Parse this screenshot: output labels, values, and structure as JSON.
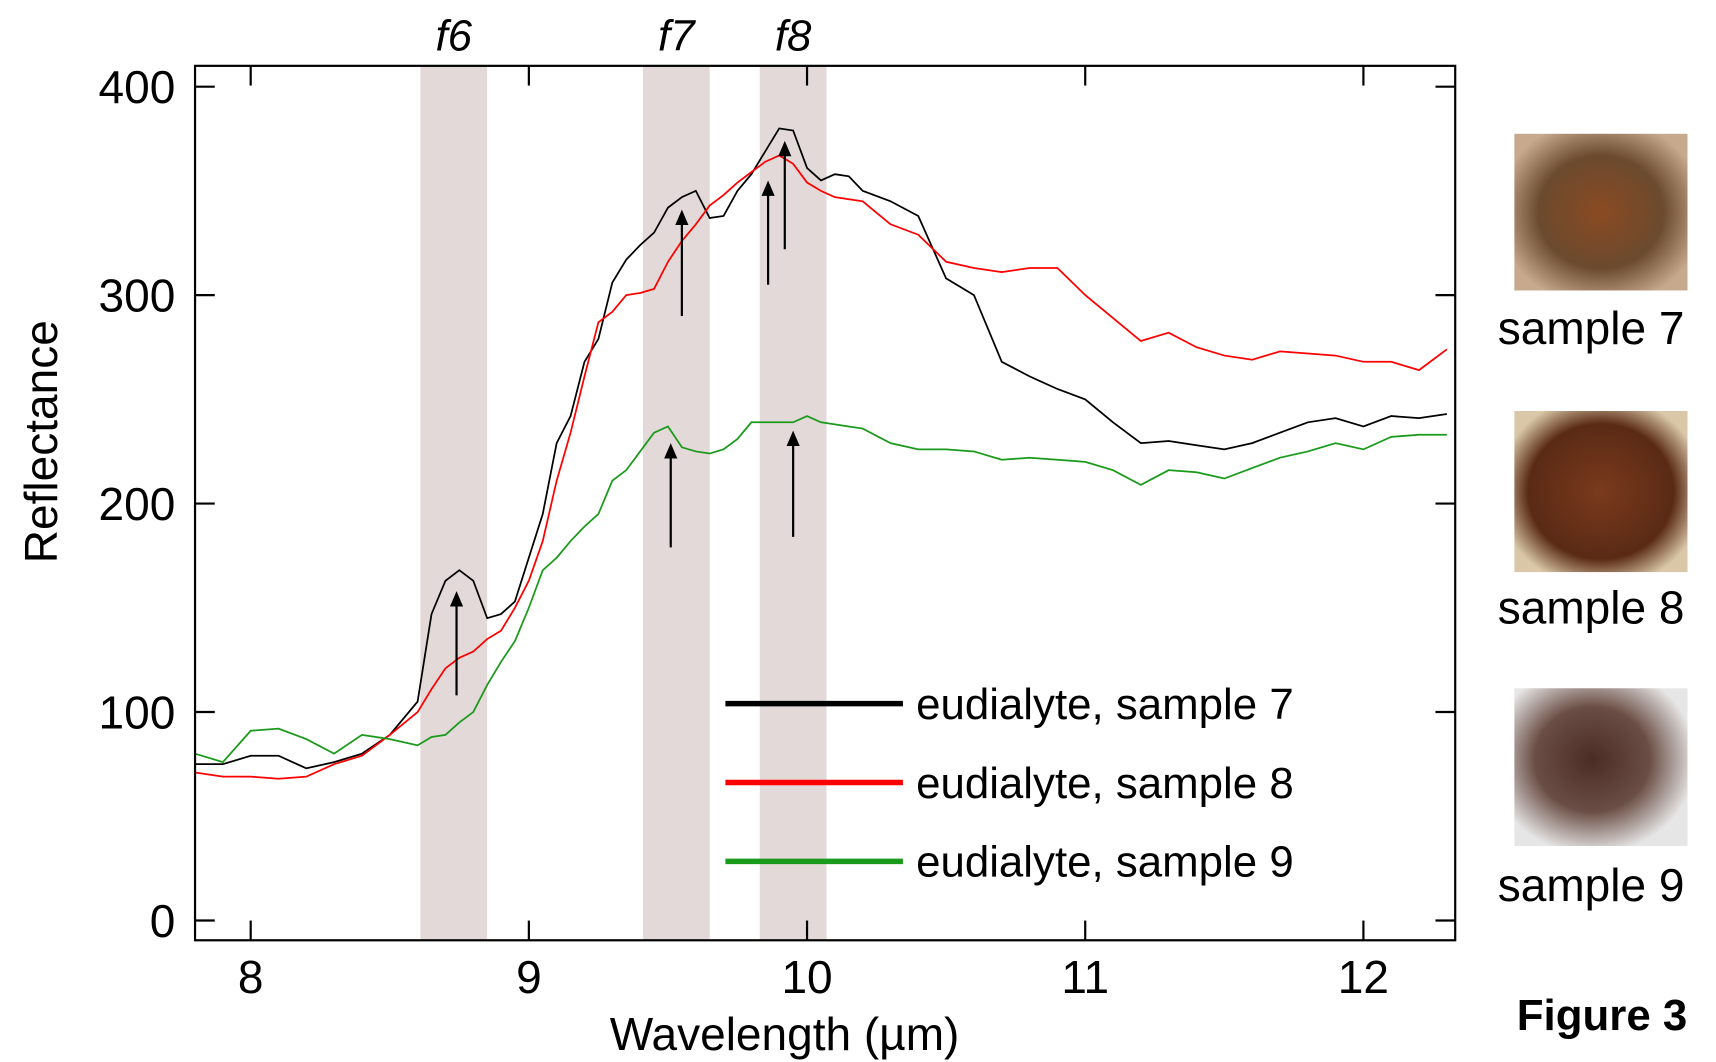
{
  "chart_data": {
    "type": "line",
    "title": "Figure 3",
    "xlabel": "Wavelength (µm)",
    "ylabel": "Reflectance",
    "xlim": [
      7.8,
      12.33
    ],
    "ylim": [
      -9.5,
      410
    ],
    "xticks": [
      8,
      9,
      10,
      11,
      12
    ],
    "yticks": [
      0,
      100,
      200,
      300,
      400
    ],
    "legend": "lower right",
    "x": [
      7.8,
      7.9,
      8.0,
      8.1,
      8.2,
      8.3,
      8.4,
      8.5,
      8.6,
      8.65,
      8.7,
      8.75,
      8.8,
      8.85,
      8.9,
      8.95,
      9.0,
      9.05,
      9.1,
      9.15,
      9.2,
      9.25,
      9.3,
      9.35,
      9.4,
      9.45,
      9.5,
      9.55,
      9.6,
      9.65,
      9.7,
      9.75,
      9.8,
      9.85,
      9.9,
      9.95,
      10.0,
      10.05,
      10.1,
      10.15,
      10.2,
      10.3,
      10.4,
      10.5,
      10.6,
      10.7,
      10.8,
      10.9,
      11.0,
      11.1,
      11.2,
      11.3,
      11.4,
      11.5,
      11.6,
      11.7,
      11.8,
      11.9,
      12.0,
      12.1,
      12.2,
      12.3
    ],
    "series": [
      {
        "name": "eudialyte, sample 7",
        "color": "#000000",
        "values": [
          75,
          75,
          79,
          79,
          73,
          76,
          80,
          89,
          105,
          147,
          163,
          168,
          163,
          145,
          147,
          153,
          174,
          195,
          229,
          242,
          268,
          279,
          306,
          317,
          324,
          330,
          342,
          347,
          350,
          337,
          338,
          350,
          358,
          369,
          380,
          379,
          361,
          355,
          358,
          357,
          350,
          345,
          338,
          308,
          300,
          268,
          261,
          255,
          250,
          239,
          229,
          230,
          228,
          226,
          229,
          234,
          239,
          241,
          237,
          242,
          241,
          243
        ]
      },
      {
        "name": "eudialyte, sample 8",
        "color": "#ff0000",
        "values": [
          71,
          69,
          69,
          68,
          69,
          75,
          79,
          89,
          100,
          111,
          121,
          126,
          129,
          135,
          139,
          150,
          163,
          182,
          211,
          234,
          261,
          287,
          292,
          300,
          301,
          303,
          316,
          326,
          334,
          343,
          348,
          354,
          359,
          364,
          367,
          363,
          354,
          350,
          347,
          346,
          345,
          334,
          329,
          316,
          313,
          311,
          313,
          313,
          300,
          289,
          278,
          282,
          275,
          271,
          269,
          273,
          272,
          271,
          268,
          268,
          264,
          274
        ]
      },
      {
        "name": "eudialyte, sample 9",
        "color": "#1a9a1a",
        "values": [
          80,
          76,
          91,
          92,
          87,
          80,
          89,
          87,
          84,
          88,
          89,
          95,
          100,
          113,
          124,
          134,
          150,
          168,
          174,
          182,
          189,
          195,
          211,
          216,
          225,
          234,
          237,
          227,
          225,
          224,
          226,
          231,
          239,
          239,
          239,
          239,
          242,
          239,
          238,
          237,
          236,
          229,
          226,
          226,
          225,
          221,
          222,
          221,
          220,
          216,
          209,
          216,
          215,
          212,
          217,
          222,
          225,
          229,
          226,
          232,
          233,
          233
        ]
      }
    ],
    "bands": [
      {
        "label": "f6",
        "range": [
          8.61,
          8.85
        ]
      },
      {
        "label": "f7",
        "range": [
          9.41,
          9.65
        ]
      },
      {
        "label": "f8",
        "range": [
          9.83,
          10.07
        ]
      }
    ],
    "arrows": [
      {
        "x": 8.74,
        "from": 108,
        "to": 158
      },
      {
        "x": 9.51,
        "from": 179,
        "to": 229
      },
      {
        "x": 9.55,
        "from": 290,
        "to": 341
      },
      {
        "x": 9.86,
        "from": 305,
        "to": 355
      },
      {
        "x": 9.92,
        "from": 322,
        "to": 374
      },
      {
        "x": 9.95,
        "from": 184,
        "to": 235
      }
    ],
    "samples": [
      "sample 7",
      "sample 8",
      "sample 9"
    ]
  }
}
